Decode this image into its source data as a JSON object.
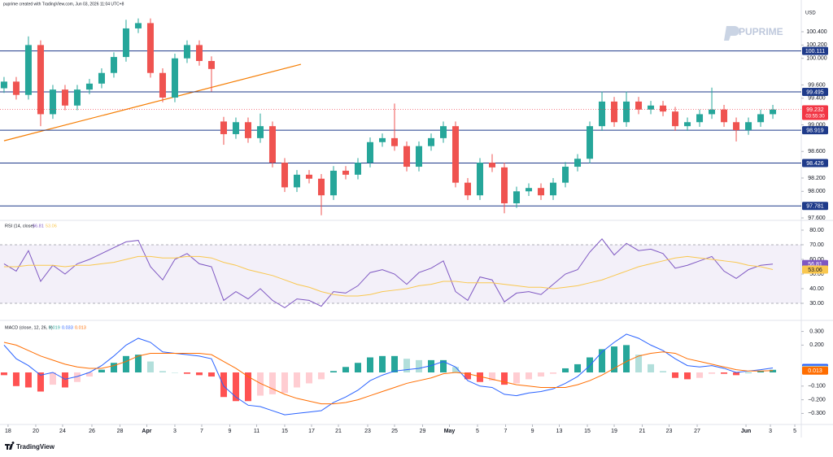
{
  "header": {
    "caption": "puprime created with TradingView.com, Jun 03, 2026 11:04 UTC+8",
    "currency": "USD",
    "watermark": "PUPRIME",
    "brand": "TradingView"
  },
  "chart_data": [
    {
      "type": "candlestick",
      "open": [
        99.55,
        99.65,
        99.45,
        100.2,
        99.16,
        99.53,
        99.29,
        99.53,
        99.62,
        99.78,
        100.02,
        100.45,
        100.53,
        99.78,
        99.41,
        100.0,
        100.2,
        99.96,
        99.05,
        98.86,
        99.04,
        98.8,
        98.98,
        98.43,
        98.06,
        98.25,
        98.19,
        97.94,
        98.31,
        98.25,
        98.43,
        98.74,
        98.8,
        98.68,
        98.37,
        98.68,
        98.8,
        98.98,
        98.13,
        97.94,
        98.43,
        98.36,
        97.82,
        98.0,
        98.05,
        97.94,
        98.13,
        98.37,
        98.49,
        98.98,
        99.35,
        99.04,
        99.35,
        99.23,
        99.29,
        99.2,
        98.98,
        99.04,
        99.16,
        99.23,
        99.04,
        98.92,
        99.04,
        99.16
      ],
      "high": [
        99.72,
        99.72,
        100.33,
        100.27,
        99.6,
        99.6,
        99.6,
        99.69,
        99.85,
        100.09,
        100.58,
        100.6,
        100.6,
        99.85,
        100.07,
        100.27,
        100.27,
        100.03,
        99.12,
        99.11,
        99.11,
        99.17,
        99.05,
        98.5,
        98.32,
        98.32,
        98.26,
        98.38,
        98.38,
        98.5,
        98.81,
        98.87,
        99.32,
        98.75,
        98.75,
        98.87,
        99.05,
        99.05,
        98.2,
        98.5,
        98.56,
        98.43,
        98.07,
        98.12,
        98.12,
        98.2,
        98.44,
        98.56,
        99.05,
        99.5,
        99.42,
        99.5,
        99.42,
        99.36,
        99.36,
        99.27,
        99.11,
        99.23,
        99.56,
        99.3,
        99.11,
        99.11,
        99.23,
        99.3
      ],
      "low": [
        99.48,
        99.38,
        99.38,
        98.98,
        99.09,
        99.22,
        99.22,
        99.46,
        99.55,
        99.71,
        99.95,
        100.38,
        99.71,
        99.34,
        99.34,
        99.93,
        99.89,
        99.5,
        98.7,
        98.79,
        98.73,
        98.73,
        98.36,
        97.99,
        97.99,
        98.12,
        97.64,
        97.87,
        98.18,
        98.18,
        98.36,
        98.67,
        98.61,
        98.3,
        98.3,
        98.61,
        98.73,
        98.06,
        97.87,
        97.87,
        98.29,
        97.67,
        97.75,
        97.93,
        97.87,
        97.87,
        98.06,
        98.3,
        98.42,
        98.91,
        98.97,
        98.97,
        99.16,
        99.16,
        99.13,
        98.91,
        98.91,
        98.97,
        99.09,
        98.97,
        98.75,
        98.85,
        98.97,
        99.09
      ],
      "close": [
        99.65,
        99.45,
        100.2,
        99.16,
        99.53,
        99.29,
        99.53,
        99.62,
        99.78,
        100.02,
        100.45,
        100.53,
        99.78,
        99.41,
        100.0,
        100.2,
        99.96,
        99.84,
        98.86,
        99.04,
        98.8,
        98.98,
        98.43,
        98.06,
        98.25,
        98.19,
        97.94,
        98.31,
        98.25,
        98.43,
        98.74,
        98.8,
        98.68,
        98.37,
        98.68,
        98.8,
        98.98,
        98.13,
        97.94,
        98.43,
        98.36,
        97.82,
        98.0,
        98.05,
        97.94,
        98.13,
        98.37,
        98.49,
        98.98,
        99.35,
        99.04,
        99.35,
        99.23,
        99.29,
        99.2,
        98.98,
        99.04,
        99.16,
        99.23,
        99.04,
        98.92,
        99.04,
        99.16,
        99.23
      ],
      "up_color": "#26a69a",
      "down_color": "#ef5350",
      "xlim": [
        -0.33,
        65.33
      ],
      "ylim": [
        97.6,
        100.755
      ],
      "yticks": [
        {
          "value": 100.4,
          "label": "100.400"
        },
        {
          "value": 100.2,
          "label": "100.200"
        },
        {
          "value": 100.0,
          "label": "100.000"
        },
        {
          "value": 99.6,
          "label": "99.600"
        },
        {
          "value": 99.4,
          "label": "99.400"
        },
        {
          "value": 99.0,
          "label": "99.000"
        },
        {
          "value": 98.6,
          "label": "98.600"
        },
        {
          "value": 98.2,
          "label": "98.200"
        },
        {
          "value": 98.0,
          "label": "98.000"
        },
        {
          "value": 97.6,
          "label": "97.600"
        }
      ],
      "grid": false,
      "hlines": [
        {
          "value": 100.111
        },
        {
          "value": 99.495
        },
        {
          "value": 98.919
        },
        {
          "value": 98.426
        },
        {
          "value": 97.781
        }
      ],
      "hline_color": "#1e3a8a",
      "trendline": {
        "x": [
          0,
          24.33
        ],
        "y": [
          98.76,
          99.91
        ],
        "color": "#f57c00"
      },
      "last": {
        "value": 99.232,
        "countdown": "03:55:30",
        "color": "#f23645"
      }
    },
    {
      "type": "line",
      "title": "RSI (14, close)",
      "series": [
        {
          "color": "#7e57c2",
          "values": [
            57,
            52,
            66,
            45,
            56,
            50,
            57,
            60,
            64,
            68,
            72,
            73,
            55,
            46,
            60,
            64,
            57,
            55,
            32,
            38,
            33,
            40,
            32,
            27,
            33,
            32,
            28,
            38,
            37,
            42,
            51,
            53,
            50,
            43,
            51,
            54,
            59,
            38,
            32,
            48,
            46,
            31,
            37,
            38,
            36,
            43,
            50,
            53,
            65,
            74,
            63,
            71,
            66,
            67,
            64,
            54,
            56,
            59,
            62,
            52,
            47,
            53,
            56,
            56.81
          ]
        },
        {
          "color": "#f9c74f",
          "values": [
            55,
            55,
            56,
            56,
            56,
            55,
            56,
            56,
            57,
            58,
            60,
            62,
            62,
            61,
            61,
            62,
            62,
            61,
            58,
            56,
            53,
            51,
            49,
            46,
            43,
            41,
            38,
            36,
            35,
            35,
            36,
            38,
            39,
            40,
            42,
            43,
            45,
            45,
            44,
            44,
            44,
            43,
            42,
            41,
            41,
            40,
            41,
            42,
            44,
            46,
            49,
            52,
            55,
            57,
            59,
            61,
            62,
            61,
            60,
            59,
            58,
            56,
            55,
            53.06
          ]
        }
      ],
      "band": [
        30,
        70
      ],
      "band_color": "#7e57c2",
      "xlim": [
        -0.33,
        65.33
      ],
      "ylim": [
        20.56,
        82.78
      ],
      "yticks": [
        {
          "value": 80,
          "label": "80.00"
        },
        {
          "value": 70,
          "label": "70.00"
        },
        {
          "value": 60,
          "label": "60.00"
        },
        {
          "value": 50,
          "label": "50.00"
        },
        {
          "value": 40,
          "label": "40.00"
        },
        {
          "value": 30,
          "label": "30.00"
        }
      ]
    },
    {
      "type": "macd",
      "title": "MACD (close, 12, 26, 9)",
      "histogram": {
        "values": [
          -0.02,
          -0.1,
          -0.11,
          -0.14,
          -0.09,
          -0.11,
          -0.07,
          -0.03,
          0.02,
          0.07,
          0.12,
          0.13,
          0.08,
          0.01,
          0.0,
          -0.01,
          -0.02,
          -0.03,
          -0.18,
          -0.21,
          -0.21,
          -0.17,
          -0.16,
          -0.15,
          -0.11,
          -0.08,
          -0.05,
          0.01,
          0.04,
          0.07,
          0.11,
          0.12,
          0.12,
          0.1,
          0.09,
          0.09,
          0.09,
          0.04,
          -0.05,
          -0.07,
          -0.06,
          -0.09,
          -0.08,
          -0.05,
          -0.03,
          -0.01,
          0.03,
          0.06,
          0.11,
          0.17,
          0.19,
          0.2,
          0.13,
          0.06,
          0.01,
          -0.04,
          -0.05,
          -0.04,
          -0.01,
          -0.01,
          -0.02,
          0.0,
          0.01,
          0.019
        ],
        "colors": [
          "#26a69a",
          "#b2dfdb",
          "#ffcdd2",
          "#ff5252"
        ]
      },
      "series": [
        {
          "color": "#2962ff",
          "values": [
            0.2,
            0.1,
            0.05,
            -0.02,
            0.0,
            -0.05,
            -0.03,
            0.0,
            0.05,
            0.12,
            0.2,
            0.25,
            0.22,
            0.15,
            0.14,
            0.13,
            0.12,
            0.1,
            -0.1,
            -0.18,
            -0.24,
            -0.25,
            -0.28,
            -0.31,
            -0.3,
            -0.29,
            -0.28,
            -0.22,
            -0.18,
            -0.13,
            -0.06,
            -0.02,
            0.01,
            0.02,
            0.03,
            0.05,
            0.08,
            0.04,
            -0.06,
            -0.1,
            -0.11,
            -0.16,
            -0.17,
            -0.15,
            -0.14,
            -0.12,
            -0.08,
            -0.03,
            0.05,
            0.15,
            0.22,
            0.28,
            0.25,
            0.2,
            0.16,
            0.1,
            0.05,
            0.04,
            0.05,
            0.03,
            0.0,
            0.01,
            0.02,
            0.033
          ]
        },
        {
          "color": "#ff6d00",
          "values": [
            0.22,
            0.2,
            0.16,
            0.12,
            0.09,
            0.06,
            0.04,
            0.03,
            0.03,
            0.05,
            0.08,
            0.12,
            0.14,
            0.14,
            0.14,
            0.14,
            0.14,
            0.13,
            0.08,
            0.03,
            -0.03,
            -0.08,
            -0.12,
            -0.16,
            -0.19,
            -0.21,
            -0.23,
            -0.23,
            -0.22,
            -0.2,
            -0.17,
            -0.14,
            -0.11,
            -0.08,
            -0.06,
            -0.04,
            -0.01,
            0.0,
            -0.01,
            -0.03,
            -0.05,
            -0.07,
            -0.09,
            -0.1,
            -0.11,
            -0.11,
            -0.11,
            -0.09,
            -0.06,
            -0.02,
            0.03,
            0.08,
            0.12,
            0.14,
            0.15,
            0.14,
            0.1,
            0.08,
            0.06,
            0.04,
            0.02,
            0.01,
            0.01,
            0.013
          ]
        }
      ],
      "xlim": [
        -0.33,
        65.33
      ],
      "ylim": [
        -0.369,
        0.357
      ],
      "yticks": [
        {
          "value": 0.3,
          "label": "0.300"
        },
        {
          "value": 0.2,
          "label": "0.200"
        },
        {
          "value": -0.1,
          "label": "−0.100"
        },
        {
          "value": -0.2,
          "label": "−0.200"
        },
        {
          "value": -0.3,
          "label": "−0.300"
        }
      ],
      "xticks": [
        {
          "value": 0.33,
          "label": "18"
        },
        {
          "value": 2.6,
          "label": "20"
        },
        {
          "value": 4.8,
          "label": "24"
        },
        {
          "value": 7.2,
          "label": "26"
        },
        {
          "value": 9.5,
          "label": "28"
        },
        {
          "value": 11.7,
          "label": "Apr"
        },
        {
          "value": 14,
          "label": "3"
        },
        {
          "value": 16.2,
          "label": "7"
        },
        {
          "value": 18.5,
          "label": "9"
        },
        {
          "value": 20.7,
          "label": "11"
        },
        {
          "value": 23,
          "label": "15"
        },
        {
          "value": 25.2,
          "label": "17"
        },
        {
          "value": 27.4,
          "label": "21"
        },
        {
          "value": 29.8,
          "label": "23"
        },
        {
          "value": 32,
          "label": "25"
        },
        {
          "value": 34.3,
          "label": "29"
        },
        {
          "value": 36.5,
          "label": "May"
        },
        {
          "value": 38.8,
          "label": "5"
        },
        {
          "value": 41.1,
          "label": "7"
        },
        {
          "value": 43.3,
          "label": "9"
        },
        {
          "value": 45.5,
          "label": "13"
        },
        {
          "value": 47.8,
          "label": "15"
        },
        {
          "value": 50,
          "label": "19"
        },
        {
          "value": 52.3,
          "label": "21"
        },
        {
          "value": 54.5,
          "label": "23"
        },
        {
          "value": 56.8,
          "label": "27"
        },
        {
          "value": 60.8,
          "label": "Jun"
        },
        {
          "value": 62.8,
          "label": "3"
        },
        {
          "value": 64.8,
          "label": "5"
        }
      ]
    }
  ]
}
